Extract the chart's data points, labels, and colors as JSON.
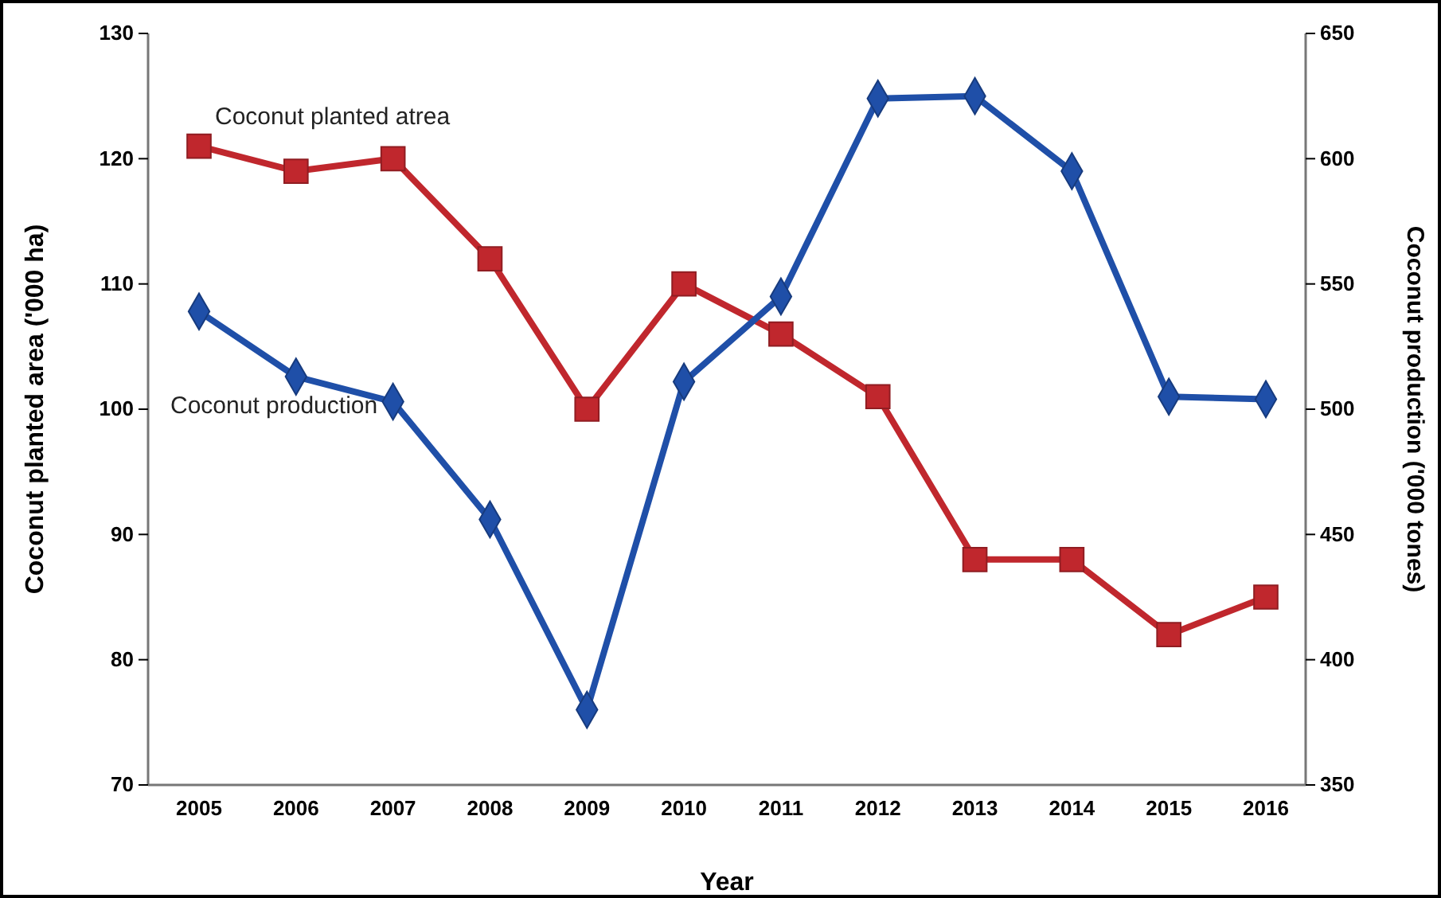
{
  "chart_data": {
    "type": "line",
    "xlabel": "Year",
    "ylabel": "Coconut planted area ('000 ha)",
    "y2label": "Coconut production ('000 tones)",
    "categories": [
      "2005",
      "2006",
      "2007",
      "2008",
      "2009",
      "2010",
      "2011",
      "2012",
      "2013",
      "2014",
      "2015",
      "2016"
    ],
    "series": [
      {
        "name": "Coconut planted atrea",
        "color": "#c0272d",
        "marker": "square",
        "values": [
          121,
          119,
          120,
          112,
          100,
          110,
          106,
          101,
          88,
          88,
          82,
          85
        ]
      },
      {
        "name": "Coconut production",
        "color": "#1f4fa8",
        "marker": "diamond",
        "axis": "y2",
        "values": [
          539,
          513,
          503,
          456,
          380,
          511,
          545,
          624,
          625,
          595,
          505,
          504
        ]
      }
    ],
    "ylim": [
      70,
      130
    ],
    "yticks": [
      70,
      80,
      90,
      100,
      110,
      120,
      130
    ],
    "y2lim": [
      350,
      650
    ],
    "y2ticks": [
      350,
      400,
      450,
      500,
      550,
      600,
      650
    ],
    "grid": false
  }
}
